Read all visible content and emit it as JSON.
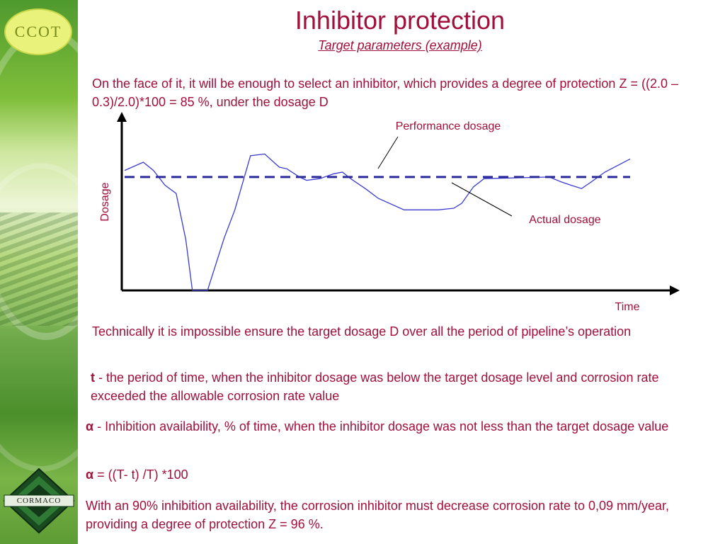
{
  "slide": {
    "title": "Inhibitor protection",
    "subtitle": "Target parameters (example)",
    "intro": "On the face of it, it will be enough to select an inhibitor, which provides a degree of protection Z = ((2.0 – 0.3)/2.0)*100 = 85 %, under the dosage D",
    "para1": "Technically it is impossible ensure the target dosage D over all the period of pipeline’s operation",
    "para2_symbol": "t",
    "para2_text": " - the period of time, when the inhibitor dosage was below the target dosage level and corrosion rate exceeded  the allowable corrosion rate value",
    "para3_symbol": "α",
    "para3_text": " - Inhibition availability, % of time, when the inhibitor dosage was not less than the target dosage value",
    "formula_symbol": "α",
    "formula_text": " = ((T- t) /T) *100",
    "para4": "With an 90% inhibition availability, the corrosion inhibitor must decrease corrosion rate to 0,09 mm/year, providing a degree of protection Z = 96 %."
  },
  "logos": {
    "top": "CCOT",
    "bottom": "CORMACO"
  },
  "colors": {
    "text": "#a0103a",
    "actual_line": "#3a3ad0",
    "target_line": "#2b2b9a",
    "axis": "#000000"
  },
  "chart_data": {
    "type": "line",
    "title": "",
    "xlabel": "Time",
    "ylabel": "Dosage",
    "xlim": [
      0,
      100
    ],
    "ylim": [
      0,
      100
    ],
    "ticks": "none",
    "grid": false,
    "series": [
      {
        "name": "",
        "style": "solid",
        "x": [
          0,
          3.7,
          5.7,
          8.0,
          10.2,
          12.1,
          13.4,
          16.4,
          19.7,
          21.8,
          24.9,
          27.7,
          30.6,
          32.1,
          34.6,
          36.0,
          38.6,
          41.4,
          43.1,
          44.7,
          47.6,
          50.2,
          55.3,
          62.0,
          65.1,
          66.7,
          69.0,
          71.1,
          84.0,
          86.4,
          88.3,
          90.4,
          92.3,
          95.0,
          100
        ],
        "y": [
          73,
          78,
          73,
          64,
          59,
          31,
          0,
          0,
          32,
          49,
          82,
          83,
          75,
          74,
          69,
          67,
          68,
          71,
          72,
          68,
          62,
          56,
          49,
          49,
          50,
          53,
          63,
          68,
          69,
          66,
          64,
          62,
          66,
          72,
          80
        ]
      },
      {
        "name": "",
        "style": "dashed",
        "x": [
          0,
          100
        ],
        "y": [
          69,
          69
        ]
      }
    ],
    "annotations": [
      {
        "text": "Performance dosage",
        "points_to_series": 1
      },
      {
        "text": "Actual dosage",
        "points_to_series": 0
      }
    ]
  }
}
